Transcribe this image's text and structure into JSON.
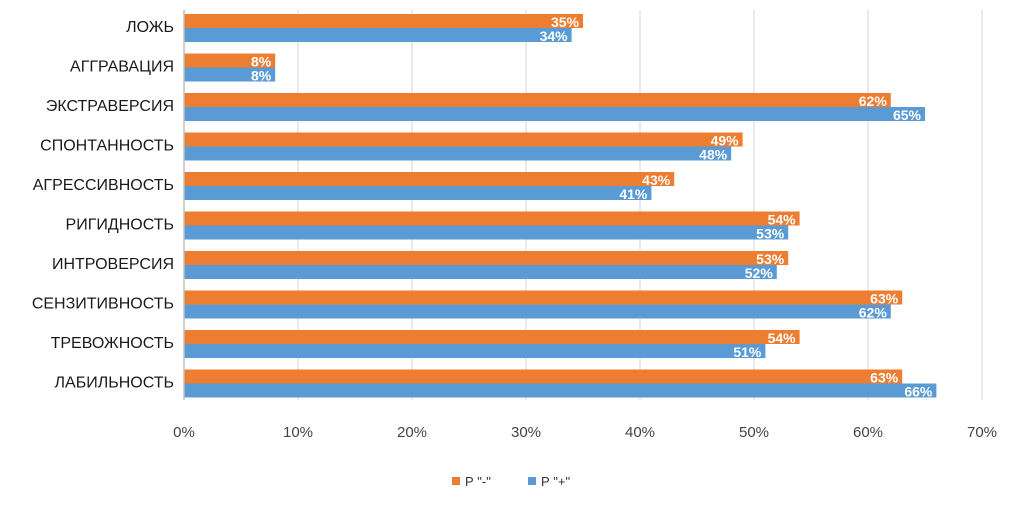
{
  "chart_data": {
    "type": "bar",
    "orientation": "horizontal",
    "categories": [
      "ЛОЖЬ",
      "АГГРАВАЦИЯ",
      "ЭКСТРАВЕРСИЯ",
      "СПОНТАННОСТЬ",
      "АГРЕССИВНОСТЬ",
      "РИГИДНОСТЬ",
      "ИНТРОВЕРСИЯ",
      "СЕНЗИТИВНОСТЬ",
      "ТРЕВОЖНОСТЬ",
      "ЛАБИЛЬНОСТЬ"
    ],
    "series": [
      {
        "name": "Р \"-\"",
        "color": "#ED7D31",
        "values": [
          35,
          8,
          62,
          49,
          43,
          54,
          53,
          63,
          54,
          63
        ]
      },
      {
        "name": "Р \"+\"",
        "color": "#5B9BD5",
        "values": [
          34,
          8,
          65,
          48,
          41,
          53,
          52,
          62,
          51,
          66
        ]
      }
    ],
    "data_label_suffix": "%",
    "x_ticks": [
      "0%",
      "10%",
      "20%",
      "30%",
      "40%",
      "50%",
      "60%",
      "70%"
    ],
    "xlim": [
      0,
      70
    ],
    "grid": true,
    "legend_position": "bottom",
    "title": "",
    "xlabel": "",
    "ylabel": ""
  }
}
